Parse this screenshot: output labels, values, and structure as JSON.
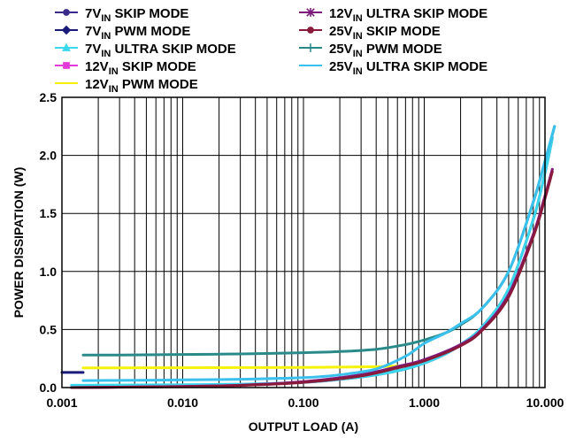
{
  "chart_data": {
    "type": "line",
    "xlabel": "OUTPUT LOAD (A)",
    "ylabel": "POWER DISSIPATION (W)",
    "xscale": "log",
    "xlim": [
      0.001,
      10.0
    ],
    "ylim": [
      0.0,
      2.5
    ],
    "grid": true,
    "legend_placement": "top",
    "xticks": [
      0.001,
      0.01,
      0.1,
      1.0,
      10.0
    ],
    "xtick_labels": [
      "0.001",
      "0.010",
      "0.100",
      "1.000",
      "10.000"
    ],
    "yticks": [
      0.0,
      0.5,
      1.0,
      1.5,
      2.0,
      2.5
    ],
    "ytick_labels": [
      "0.0",
      "0.5",
      "1.0",
      "1.5",
      "2.0",
      "2.5"
    ],
    "series": [
      {
        "name": "7V",
        "sub": "IN",
        "mode": " SKIP MODE",
        "color": "#3a2a8c",
        "marker": "circle",
        "x": [
          0.0012,
          0.003,
          0.01,
          0.03,
          0.1,
          0.2,
          0.4,
          0.7,
          1.0,
          1.5,
          2.0,
          3.0,
          5.0,
          8.0,
          10.0,
          11.5
        ],
        "y": [
          0.0,
          0.005,
          0.012,
          0.025,
          0.045,
          0.07,
          0.11,
          0.16,
          0.21,
          0.29,
          0.37,
          0.52,
          0.85,
          1.45,
          1.85,
          2.15
        ]
      },
      {
        "name": "7V",
        "sub": "IN",
        "mode": " PWM MODE",
        "color": "#1a1a7a",
        "marker": "diamond",
        "x": [
          0.001,
          0.0015
        ],
        "y": [
          0.13,
          0.13
        ]
      },
      {
        "name": "7V",
        "sub": "IN",
        "mode": " ULTRA SKIP MODE",
        "color": "#3ad8ec",
        "marker": "triangle",
        "x": [
          0.0012,
          0.003,
          0.01,
          0.03,
          0.1,
          0.2,
          0.4,
          0.7,
          1.0,
          1.5,
          2.0,
          3.0,
          5.0,
          8.0,
          10.0,
          11.5
        ],
        "y": [
          0.02,
          0.022,
          0.025,
          0.03,
          0.045,
          0.07,
          0.11,
          0.16,
          0.21,
          0.29,
          0.37,
          0.52,
          0.85,
          1.45,
          1.85,
          2.15
        ]
      },
      {
        "name": "12V",
        "sub": "IN",
        "mode": " SKIP MODE",
        "color": "#e23ad8",
        "marker": "square",
        "x": [
          0.0012,
          0.003,
          0.01,
          0.03,
          0.1,
          0.3,
          0.6,
          1.0,
          2.0,
          3.0,
          5.0,
          8.0,
          10.0,
          11.5
        ],
        "y": [
          0.0,
          0.004,
          0.01,
          0.02,
          0.05,
          0.11,
          0.18,
          0.24,
          0.37,
          0.5,
          0.8,
          1.32,
          1.65,
          1.88
        ]
      },
      {
        "name": "12V",
        "sub": "IN",
        "mode": " PWM MODE",
        "color": "#f6f20a",
        "marker": "none",
        "x": [
          0.0015,
          0.003,
          0.01,
          0.03,
          0.1,
          0.2,
          0.4,
          0.6
        ],
        "y": [
          0.17,
          0.17,
          0.171,
          0.172,
          0.174,
          0.176,
          0.18,
          0.185
        ]
      },
      {
        "name": "12V",
        "sub": "IN",
        "mode": " ULTRA SKIP MODE",
        "color": "#7c1a7c",
        "marker": "star",
        "x": [
          0.0012,
          0.003,
          0.01,
          0.03,
          0.1,
          0.3,
          0.6,
          1.0,
          2.0,
          3.0,
          5.0,
          8.0,
          10.0,
          11.5
        ],
        "y": [
          0.0,
          0.004,
          0.01,
          0.02,
          0.05,
          0.11,
          0.18,
          0.24,
          0.37,
          0.5,
          0.8,
          1.32,
          1.65,
          1.88
        ]
      },
      {
        "name": "25V",
        "sub": "IN",
        "mode": " SKIP MODE",
        "color": "#8a1a3a",
        "marker": "circle",
        "x": [
          0.0012,
          0.003,
          0.01,
          0.03,
          0.1,
          0.3,
          0.6,
          1.0,
          2.0,
          3.0,
          5.0,
          8.0,
          10.0,
          11.5
        ],
        "y": [
          0.0,
          0.003,
          0.008,
          0.018,
          0.045,
          0.1,
          0.17,
          0.23,
          0.36,
          0.49,
          0.78,
          1.3,
          1.63,
          1.86
        ]
      },
      {
        "name": "25V",
        "sub": "IN",
        "mode": " PWM MODE",
        "color": "#2a8a8a",
        "marker": "plus",
        "x": [
          0.0015,
          0.003,
          0.01,
          0.03,
          0.1,
          0.2,
          0.4,
          0.7,
          1.0,
          1.5,
          2.0,
          3.0,
          5.0,
          8.0,
          10.0,
          12.0
        ],
        "y": [
          0.28,
          0.28,
          0.285,
          0.29,
          0.3,
          0.31,
          0.33,
          0.37,
          0.41,
          0.47,
          0.54,
          0.68,
          1.0,
          1.6,
          1.95,
          2.25
        ]
      },
      {
        "name": "25V",
        "sub": "IN",
        "mode": " ULTRA SKIP MODE",
        "color": "#3ac0ec",
        "marker": "line",
        "x": [
          0.0015,
          0.003,
          0.01,
          0.03,
          0.1,
          0.2,
          0.4,
          0.7,
          1.0,
          1.5,
          2.0,
          3.0,
          5.0,
          8.0,
          10.0,
          12.0
        ],
        "y": [
          0.06,
          0.062,
          0.066,
          0.072,
          0.085,
          0.11,
          0.16,
          0.27,
          0.38,
          0.47,
          0.55,
          0.68,
          1.0,
          1.6,
          1.95,
          2.25
        ]
      }
    ]
  }
}
